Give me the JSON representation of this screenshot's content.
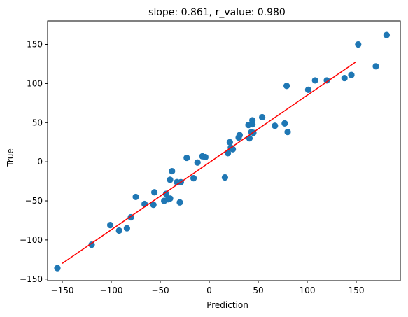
{
  "chart_data": {
    "type": "scatter",
    "title": "slope: 0.861, r_value: 0.980",
    "xlabel": "Prediction",
    "ylabel": "True",
    "xlim": [
      -165,
      195
    ],
    "ylim": [
      -152,
      180
    ],
    "xticks": [
      -150,
      -100,
      -50,
      0,
      50,
      100,
      150
    ],
    "yticks": [
      -150,
      -100,
      -50,
      0,
      50,
      100,
      150
    ],
    "xtick_labels": [
      "−150",
      "−100",
      "−50",
      "0",
      "50",
      "100",
      "150"
    ],
    "ytick_labels": [
      "−150",
      "−100",
      "−50",
      "0",
      "50",
      "100",
      "150"
    ],
    "grid": false,
    "series": [
      {
        "kind": "scatter",
        "color": "#1f77b4",
        "points": [
          [
            -155,
            -136
          ],
          [
            -120,
            -106
          ],
          [
            -101,
            -81
          ],
          [
            -92,
            -88
          ],
          [
            -84,
            -85
          ],
          [
            -80,
            -71
          ],
          [
            -75,
            -45
          ],
          [
            -66,
            -54
          ],
          [
            -56,
            -39
          ],
          [
            -57,
            -55
          ],
          [
            -46,
            -50
          ],
          [
            -44,
            -41
          ],
          [
            -40,
            -23
          ],
          [
            -42,
            -48
          ],
          [
            -40,
            -47
          ],
          [
            -38,
            -12
          ],
          [
            -33,
            -26
          ],
          [
            -30,
            -52
          ],
          [
            -29,
            -26
          ],
          [
            -23,
            5
          ],
          [
            -16,
            -21
          ],
          [
            -12,
            -1
          ],
          [
            -7,
            7
          ],
          [
            -4,
            6
          ],
          [
            16,
            -20
          ],
          [
            19,
            11
          ],
          [
            21,
            25
          ],
          [
            22,
            18
          ],
          [
            24,
            16
          ],
          [
            30,
            31
          ],
          [
            31,
            34
          ],
          [
            40,
            47
          ],
          [
            41,
            30
          ],
          [
            43,
            38
          ],
          [
            44,
            53
          ],
          [
            44,
            48
          ],
          [
            45,
            37
          ],
          [
            54,
            57
          ],
          [
            67,
            46
          ],
          [
            77,
            49
          ],
          [
            79,
            97
          ],
          [
            80,
            38
          ],
          [
            101,
            92
          ],
          [
            108,
            104
          ],
          [
            120,
            104
          ],
          [
            138,
            107
          ],
          [
            145,
            111
          ],
          [
            152,
            150
          ],
          [
            170,
            122
          ],
          [
            181,
            162
          ]
        ]
      },
      {
        "kind": "line",
        "color": "#ff0000",
        "x": [
          -150,
          150
        ],
        "y": [
          -130,
          128
        ]
      }
    ]
  }
}
